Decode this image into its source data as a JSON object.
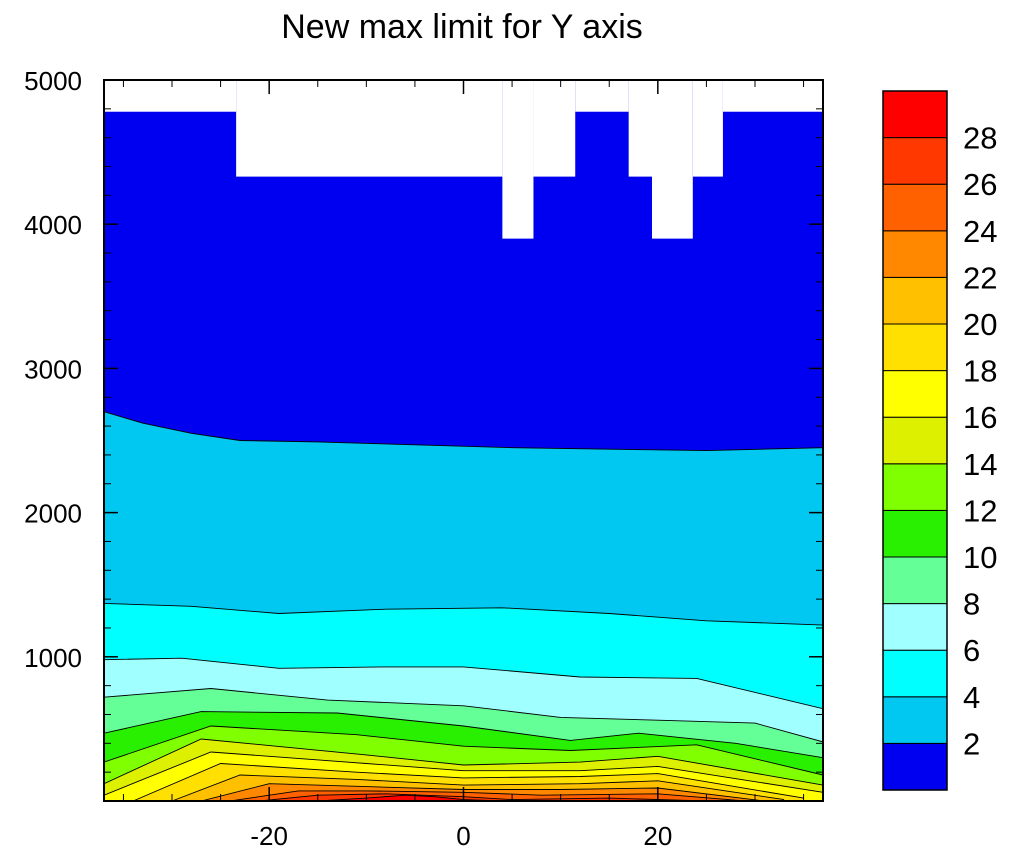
{
  "chart_data": {
    "type": "contour",
    "title": "New max limit for Y axis",
    "xlabel": "",
    "ylabel": "",
    "xlim": [
      -37,
      37
    ],
    "ylim": [
      0,
      5000
    ],
    "x_ticks": [
      -20,
      0,
      20
    ],
    "y_ticks": [
      1000,
      2000,
      3000,
      4000,
      5000
    ],
    "grid": false,
    "colorbar": {
      "levels": [
        2,
        4,
        6,
        8,
        10,
        12,
        14,
        16,
        18,
        20,
        22,
        24,
        26,
        28
      ],
      "labels": [
        "2",
        "4",
        "6",
        "8",
        "10",
        "12",
        "14",
        "16",
        "18",
        "20",
        "22",
        "24",
        "26",
        "28"
      ],
      "colors": [
        "#0000f0",
        "#00c8f0",
        "#00ffff",
        "#a0ffff",
        "#64ff96",
        "#28f000",
        "#80ff00",
        "#dcf000",
        "#ffff00",
        "#ffe000",
        "#ffc000",
        "#ff8800",
        "#ff6000",
        "#ff3800",
        "#ff0000"
      ]
    },
    "missing_mask": [
      {
        "x": [
          -37,
          -23.4
        ],
        "y_above": 4780
      },
      {
        "x": [
          -23.4,
          4
        ],
        "y_above": 4330
      },
      {
        "x": [
          4,
          7.2
        ],
        "y_above": 3900
      },
      {
        "x": [
          7.2,
          11.5
        ],
        "y_above": 4330
      },
      {
        "x": [
          11.5,
          17
        ],
        "y_above": 4780
      },
      {
        "x": [
          17,
          19.4
        ],
        "y_above": 4330
      },
      {
        "x": [
          19.4,
          23.6
        ],
        "y_above": 3900
      },
      {
        "x": [
          23.6,
          26.7
        ],
        "y_above": 4330
      },
      {
        "x": [
          26.7,
          37
        ],
        "y_above": 4780
      }
    ],
    "contours": [
      {
        "level": 2,
        "x": [
          -37,
          -33,
          -28,
          -23,
          -15,
          -5,
          5,
          15,
          25,
          37
        ],
        "y": [
          2700,
          2620,
          2550,
          2500,
          2490,
          2470,
          2450,
          2440,
          2430,
          2450
        ]
      },
      {
        "level": 4,
        "x": [
          -37,
          -28,
          -19,
          -8,
          4,
          15,
          25,
          37
        ],
        "y": [
          1370,
          1350,
          1300,
          1330,
          1340,
          1300,
          1250,
          1220
        ]
      },
      {
        "level": 6,
        "x": [
          -37,
          -29,
          -19,
          -8,
          0,
          12,
          24,
          37
        ],
        "y": [
          980,
          990,
          920,
          930,
          930,
          860,
          850,
          640
        ]
      },
      {
        "level": 8,
        "x": [
          -37,
          -26,
          -14,
          0,
          10,
          20,
          30,
          37
        ],
        "y": [
          720,
          780,
          700,
          660,
          580,
          560,
          540,
          410
        ]
      },
      {
        "level": 10,
        "x": [
          -37,
          -27,
          -13,
          0,
          11,
          18,
          28,
          37
        ],
        "y": [
          470,
          620,
          610,
          520,
          420,
          470,
          400,
          300
        ]
      },
      {
        "level": 12,
        "x": [
          -37,
          -26,
          -11,
          0,
          11,
          24,
          37
        ],
        "y": [
          270,
          520,
          460,
          380,
          350,
          390,
          180
        ]
      },
      {
        "level": 14,
        "x": [
          -37,
          -27,
          -10,
          0,
          12,
          20,
          37
        ],
        "y": [
          120,
          430,
          320,
          250,
          270,
          310,
          110
        ]
      },
      {
        "level": 16,
        "x": [
          -37,
          -26,
          -10,
          0,
          12,
          20,
          37
        ],
        "y": [
          40,
          340,
          260,
          210,
          210,
          240,
          60
        ]
      },
      {
        "level": 18,
        "x": [
          -34,
          -25,
          -11,
          0,
          12,
          20,
          35
        ],
        "y": [
          0,
          260,
          200,
          160,
          170,
          190,
          20
        ]
      },
      {
        "level": 20,
        "x": [
          -30,
          -23,
          -11,
          0,
          12,
          20,
          33
        ],
        "y": [
          0,
          180,
          150,
          110,
          120,
          140,
          10
        ]
      },
      {
        "level": 22,
        "x": [
          -27,
          -20,
          -10,
          0,
          10,
          20,
          31
        ],
        "y": [
          0,
          120,
          100,
          80,
          80,
          90,
          0
        ]
      },
      {
        "level": 24,
        "x": [
          -24,
          -17,
          -10,
          0,
          8,
          20,
          29
        ],
        "y": [
          0,
          70,
          70,
          60,
          40,
          50,
          0
        ]
      },
      {
        "level": 26,
        "x": [
          -21,
          -15,
          -8,
          0,
          5,
          15,
          25
        ],
        "y": [
          0,
          40,
          50,
          30,
          10,
          20,
          0
        ]
      },
      {
        "level": 28,
        "x": [
          -15,
          -10,
          -6,
          -3,
          0,
          4
        ],
        "y": [
          0,
          20,
          40,
          30,
          10,
          0
        ]
      }
    ]
  }
}
